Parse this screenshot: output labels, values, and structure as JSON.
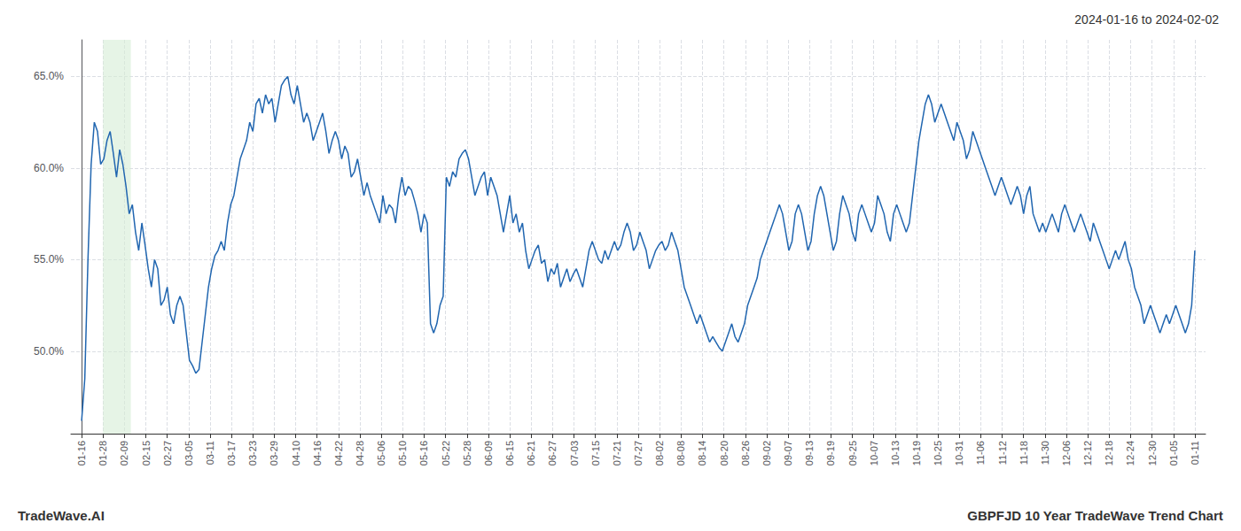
{
  "chart_data": {
    "type": "line",
    "title": "2024-01-16 to 2024-02-02",
    "annotations": [
      "TradeWave.AI",
      "GBPFJD 10 Year TradeWave Trend Chart"
    ],
    "color": "#2166b0",
    "background_color": "#ffffff",
    "grid": true,
    "shade": [
      1.0,
      2.3
    ],
    "shade_color": "#d6ecd6",
    "xlim": [
      -0.5,
      52.5
    ],
    "xticks": [
      {
        "value": 0,
        "label": "01-16"
      },
      {
        "value": 1,
        "label": "01-28"
      },
      {
        "value": 2,
        "label": "02-09"
      },
      {
        "value": 3,
        "label": "02-15"
      },
      {
        "value": 4,
        "label": "02-27"
      },
      {
        "value": 5,
        "label": "03-05"
      },
      {
        "value": 6,
        "label": "03-11"
      },
      {
        "value": 7,
        "label": "03-17"
      },
      {
        "value": 8,
        "label": "03-23"
      },
      {
        "value": 9,
        "label": "03-29"
      },
      {
        "value": 10,
        "label": "04-10"
      },
      {
        "value": 11,
        "label": "04-16"
      },
      {
        "value": 12,
        "label": "04-22"
      },
      {
        "value": 13,
        "label": "04-28"
      },
      {
        "value": 14,
        "label": "05-06"
      },
      {
        "value": 15,
        "label": "05-10"
      },
      {
        "value": 16,
        "label": "05-16"
      },
      {
        "value": 17,
        "label": "05-22"
      },
      {
        "value": 18,
        "label": "05-28"
      },
      {
        "value": 19,
        "label": "06-09"
      },
      {
        "value": 20,
        "label": "06-15"
      },
      {
        "value": 21,
        "label": "06-21"
      },
      {
        "value": 22,
        "label": "06-27"
      },
      {
        "value": 23,
        "label": "07-03"
      },
      {
        "value": 24,
        "label": "07-15"
      },
      {
        "value": 25,
        "label": "07-21"
      },
      {
        "value": 26,
        "label": "07-27"
      },
      {
        "value": 27,
        "label": "08-02"
      },
      {
        "value": 28,
        "label": "08-08"
      },
      {
        "value": 29,
        "label": "08-14"
      },
      {
        "value": 30,
        "label": "08-20"
      },
      {
        "value": 31,
        "label": "08-26"
      },
      {
        "value": 32,
        "label": "09-02"
      },
      {
        "value": 33,
        "label": "09-07"
      },
      {
        "value": 34,
        "label": "09-13"
      },
      {
        "value": 35,
        "label": "09-19"
      },
      {
        "value": 36,
        "label": "09-25"
      },
      {
        "value": 37,
        "label": "10-07"
      },
      {
        "value": 38,
        "label": "10-13"
      },
      {
        "value": 39,
        "label": "10-19"
      },
      {
        "value": 40,
        "label": "10-25"
      },
      {
        "value": 41,
        "label": "10-31"
      },
      {
        "value": 42,
        "label": "11-06"
      },
      {
        "value": 43,
        "label": "11-12"
      },
      {
        "value": 44,
        "label": "11-18"
      },
      {
        "value": 45,
        "label": "11-30"
      },
      {
        "value": 46,
        "label": "12-06"
      },
      {
        "value": 47,
        "label": "12-12"
      },
      {
        "value": 48,
        "label": "12-18"
      },
      {
        "value": 49,
        "label": "12-24"
      },
      {
        "value": 50,
        "label": "12-30"
      },
      {
        "value": 51,
        "label": "01-05"
      },
      {
        "value": 52,
        "label": "01-11"
      }
    ],
    "ylim": [
      45.5,
      67.0
    ],
    "yticks": [
      {
        "value": 50.0,
        "label": "50.0%"
      },
      {
        "value": 55.0,
        "label": "55.0%"
      },
      {
        "value": 60.0,
        "label": "60.0%"
      },
      {
        "value": 65.0,
        "label": "65.0%"
      }
    ],
    "values": [
      46.2,
      48.5,
      55.0,
      60.2,
      62.5,
      62.0,
      60.2,
      60.5,
      61.5,
      62.0,
      60.8,
      59.5,
      61.0,
      60.2,
      59.0,
      57.5,
      58.0,
      56.5,
      55.5,
      57.0,
      55.8,
      54.5,
      53.5,
      55.0,
      54.5,
      52.5,
      52.8,
      53.5,
      52.0,
      51.5,
      52.5,
      53.0,
      52.5,
      51.0,
      49.5,
      49.2,
      48.8,
      49.0,
      50.5,
      52.0,
      53.5,
      54.5,
      55.2,
      55.5,
      56.0,
      55.5,
      57.0,
      58.0,
      58.5,
      59.5,
      60.5,
      61.0,
      61.5,
      62.5,
      62.0,
      63.5,
      63.8,
      63.0,
      64.0,
      63.5,
      63.8,
      62.5,
      63.5,
      64.5,
      64.8,
      65.0,
      64.0,
      63.5,
      64.5,
      63.5,
      62.5,
      63.0,
      62.5,
      61.5,
      62.0,
      62.5,
      63.0,
      62.0,
      60.8,
      61.5,
      62.0,
      61.5,
      60.5,
      61.2,
      60.8,
      59.5,
      59.8,
      60.5,
      59.5,
      58.5,
      59.2,
      58.5,
      58.0,
      57.5,
      57.0,
      58.5,
      57.5,
      58.0,
      57.8,
      57.0,
      58.5,
      59.5,
      58.5,
      59.0,
      58.8,
      58.2,
      57.5,
      56.5,
      57.5,
      57.0,
      51.5,
      51.0,
      51.5,
      52.5,
      53.0,
      59.5,
      59.0,
      59.8,
      59.5,
      60.5,
      60.8,
      61.0,
      60.5,
      59.5,
      58.5,
      59.0,
      59.5,
      59.8,
      58.5,
      59.5,
      59.0,
      58.5,
      57.5,
      56.5,
      57.5,
      58.5,
      57.0,
      57.5,
      56.5,
      57.0,
      55.5,
      54.5,
      55.0,
      55.5,
      55.8,
      54.8,
      55.0,
      53.8,
      54.5,
      54.2,
      54.8,
      53.5,
      54.0,
      54.5,
      53.8,
      54.2,
      54.5,
      54.0,
      53.5,
      54.5,
      55.5,
      56.0,
      55.5,
      55.0,
      54.8,
      55.5,
      55.0,
      55.5,
      56.0,
      55.5,
      55.8,
      56.5,
      57.0,
      56.5,
      55.5,
      55.8,
      56.5,
      56.0,
      55.5,
      54.5,
      55.0,
      55.5,
      55.8,
      56.0,
      55.5,
      55.8,
      56.5,
      56.0,
      55.5,
      54.5,
      53.5,
      53.0,
      52.5,
      52.0,
      51.5,
      52.0,
      51.5,
      51.0,
      50.5,
      50.8,
      50.5,
      50.2,
      50.0,
      50.5,
      51.0,
      51.5,
      50.8,
      50.5,
      51.0,
      51.5,
      52.5,
      53.0,
      53.5,
      54.0,
      55.0,
      55.5,
      56.0,
      56.5,
      57.0,
      57.5,
      58.0,
      57.5,
      56.5,
      55.5,
      56.0,
      57.5,
      58.0,
      57.5,
      56.5,
      55.5,
      56.0,
      57.5,
      58.5,
      59.0,
      58.5,
      57.5,
      56.5,
      55.5,
      56.0,
      57.5,
      58.5,
      58.0,
      57.5,
      56.5,
      56.0,
      57.5,
      58.0,
      57.5,
      57.0,
      56.5,
      57.0,
      58.5,
      58.0,
      57.5,
      56.5,
      56.0,
      57.5,
      58.0,
      57.5,
      57.0,
      56.5,
      57.0,
      58.5,
      60.0,
      61.5,
      62.5,
      63.5,
      64.0,
      63.5,
      62.5,
      63.0,
      63.5,
      63.0,
      62.5,
      62.0,
      61.5,
      62.5,
      62.0,
      61.5,
      60.5,
      61.0,
      62.0,
      61.5,
      61.0,
      60.5,
      60.0,
      59.5,
      59.0,
      58.5,
      59.0,
      59.5,
      59.0,
      58.5,
      58.0,
      58.5,
      59.0,
      58.5,
      57.5,
      58.5,
      59.0,
      57.5,
      57.0,
      56.5,
      57.0,
      56.5,
      57.0,
      57.5,
      57.0,
      56.5,
      57.5,
      58.0,
      57.5,
      57.0,
      56.5,
      57.0,
      57.5,
      57.0,
      56.5,
      56.0,
      57.0,
      56.5,
      56.0,
      55.5,
      55.0,
      54.5,
      55.0,
      55.5,
      55.0,
      55.5,
      56.0,
      55.0,
      54.5,
      53.5,
      53.0,
      52.5,
      51.5,
      52.0,
      52.5,
      52.0,
      51.5,
      51.0,
      51.5,
      52.0,
      51.5,
      52.0,
      52.5,
      52.0,
      51.5,
      51.0,
      51.5,
      52.5,
      55.5
    ]
  }
}
